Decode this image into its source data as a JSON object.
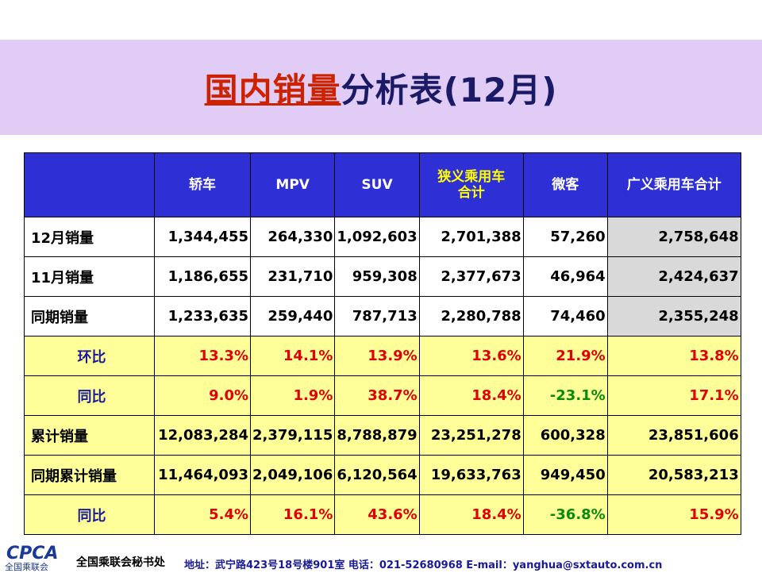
{
  "title": {
    "highlight": "国内销量",
    "rest": "分析表(12月)"
  },
  "colors": {
    "header_bg": "#2f2fd6",
    "title_band": "#e0ccf5",
    "ratio_bg": "#ffff99",
    "positive": "#e00000",
    "negative": "#0a8a0a",
    "total_bg": "#d9d9d9"
  },
  "table": {
    "headers": [
      "轿车",
      "MPV",
      "SUV",
      "狭义乘用车\n合计",
      "微客",
      "广义乘用车合计"
    ],
    "rows": [
      {
        "label": "12月销量",
        "values": [
          "1,344,455",
          "264,330",
          "1,092,603",
          "2,701,388",
          "57,260",
          "2,758,648"
        ]
      },
      {
        "label": "11月销量",
        "values": [
          "1,186,655",
          "231,710",
          "959,308",
          "2,377,673",
          "46,964",
          "2,424,637"
        ]
      },
      {
        "label": "同期销量",
        "values": [
          "1,233,635",
          "259,440",
          "787,713",
          "2,280,788",
          "74,460",
          "2,355,248"
        ]
      },
      {
        "label": "环比",
        "values": [
          "13.3%",
          "14.1%",
          "13.9%",
          "13.6%",
          "21.9%",
          "13.8%"
        ]
      },
      {
        "label": "同比",
        "values": [
          "9.0%",
          "1.9%",
          "38.7%",
          "18.4%",
          "-23.1%",
          "17.1%"
        ]
      },
      {
        "label": "累计销量",
        "values": [
          "12,083,284",
          "2,379,115",
          "8,788,879",
          "23,251,278",
          "600,328",
          "23,851,606"
        ]
      },
      {
        "label": "同期累计销量",
        "values": [
          "11,464,093",
          "2,049,106",
          "6,120,564",
          "19,633,763",
          "949,450",
          "20,583,213"
        ]
      },
      {
        "label": "同比",
        "values": [
          "5.4%",
          "16.1%",
          "43.6%",
          "18.4%",
          "-36.8%",
          "15.9%"
        ]
      }
    ]
  },
  "footer": {
    "logo": "CPCA",
    "logo_sub": "全国乘联会",
    "org": "全国乘联会秘书处",
    "info": "地址：武宁路423号18号楼901室   电话：021-52680968   E-mail：yanghua@sxtauto.com.cn"
  }
}
